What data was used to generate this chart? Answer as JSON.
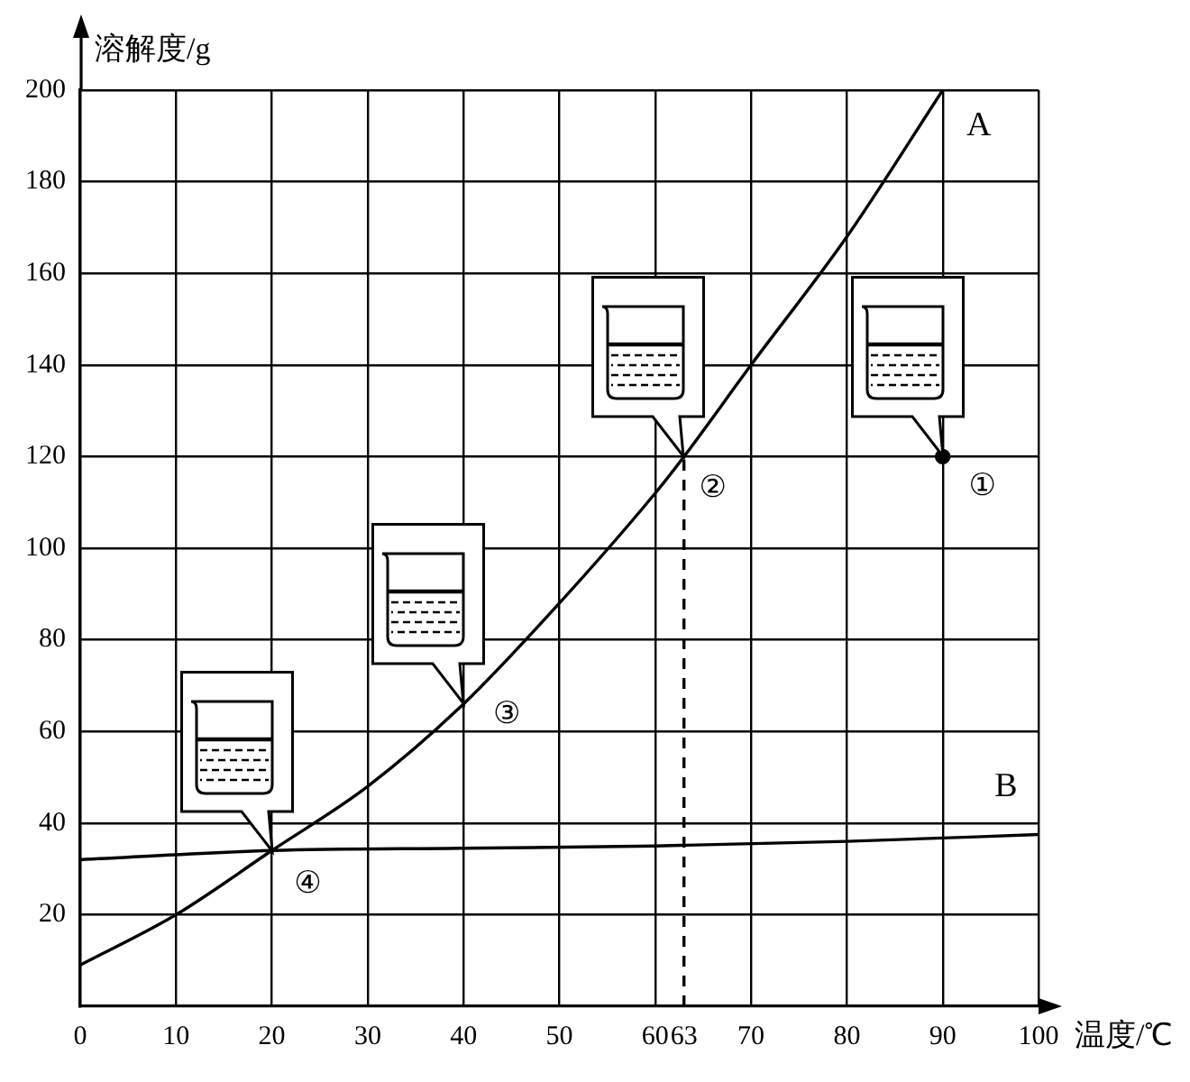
{
  "chart_data": {
    "type": "line",
    "xlabel": "温度/℃",
    "ylabel": "溶解度/g",
    "series": [
      {
        "name": "A",
        "color": "#000000",
        "x": [
          0,
          10,
          20,
          30,
          40,
          50,
          60,
          63,
          70,
          80,
          90
        ],
        "values": [
          9,
          20,
          34,
          48,
          66,
          88,
          112,
          120,
          140,
          168,
          200
        ]
      },
      {
        "name": "B",
        "color": "#000000",
        "x": [
          0,
          20,
          40,
          60,
          80,
          100
        ],
        "values": [
          32,
          34,
          34.5,
          35,
          36,
          37.5
        ]
      },
      {
        "type": "line",
        "color": "#000000",
        "x": [
          63,
          63
        ],
        "values": [
          0,
          120
        ],
        "line_style": "dashed"
      },
      {
        "type": "scatter",
        "color": "#000000",
        "x": [
          90
        ],
        "values": [
          120
        ],
        "marker": "circle"
      }
    ],
    "xlim": [
      0,
      100
    ],
    "xticks": [
      0,
      10,
      20,
      30,
      40,
      50,
      60,
      63,
      70,
      80,
      90,
      100
    ],
    "ylim": [
      0,
      200
    ],
    "yticks": [
      20,
      40,
      60,
      80,
      100,
      120,
      140,
      160,
      180,
      200
    ],
    "annotations": [
      {
        "text": "①",
        "x": 90,
        "y": 120
      },
      {
        "text": "②",
        "x": 63,
        "y": 120
      },
      {
        "text": "③",
        "x": 40,
        "y": 66
      },
      {
        "text": "④",
        "x": 20,
        "y": 34
      }
    ],
    "grid": true,
    "legend": false,
    "marker": "none",
    "line_style": "solid"
  }
}
